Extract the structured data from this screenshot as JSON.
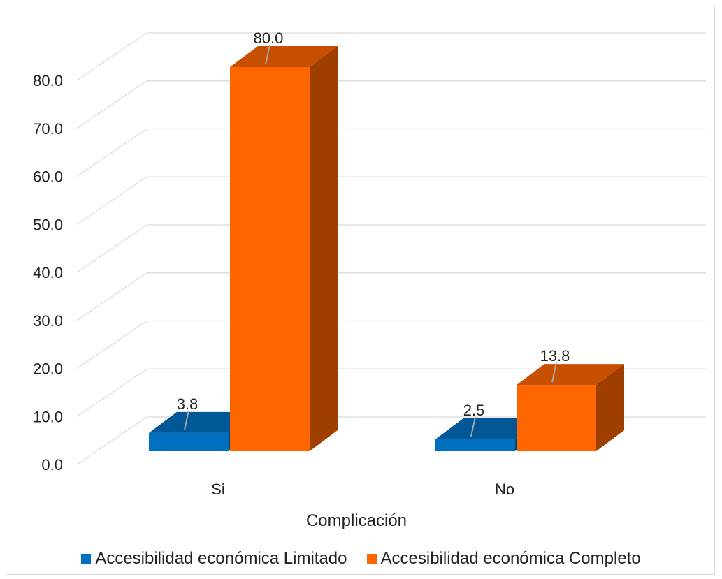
{
  "chart_data": {
    "type": "bar",
    "categories": [
      "Si",
      "No"
    ],
    "series": [
      {
        "name": "Accesibilidad económica Limitado",
        "values": [
          3.8,
          2.5
        ],
        "color": "#0070c0"
      },
      {
        "name": "Accesibilidad económica Completo",
        "values": [
          80.0,
          13.8
        ],
        "color": "#ff6600"
      }
    ],
    "xlabel": "Complicación",
    "ylabel": "",
    "ylim": [
      0,
      80
    ],
    "yticks": [
      "0.0",
      "10.0",
      "20.0",
      "30.0",
      "40.0",
      "50.0",
      "60.0",
      "70.0",
      "80.0"
    ],
    "data_labels": [
      [
        "3.8",
        "2.5"
      ],
      [
        "80.0",
        "13.8"
      ]
    ],
    "three_d": true,
    "grid": true,
    "legend_position": "bottom"
  }
}
